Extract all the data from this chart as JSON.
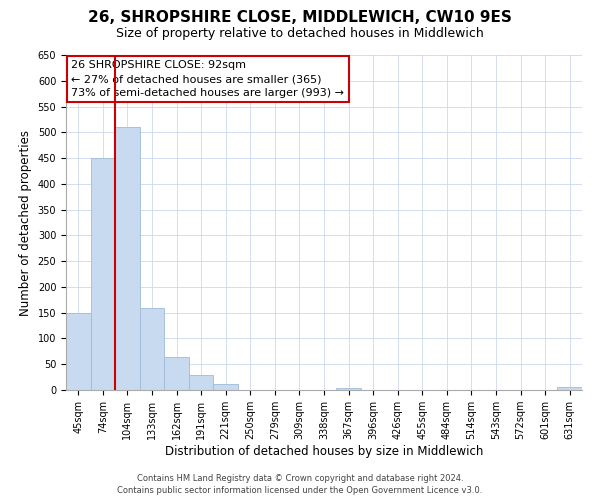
{
  "title": "26, SHROPSHIRE CLOSE, MIDDLEWICH, CW10 9ES",
  "subtitle": "Size of property relative to detached houses in Middlewich",
  "xlabel": "Distribution of detached houses by size in Middlewich",
  "ylabel": "Number of detached properties",
  "bar_labels": [
    "45sqm",
    "74sqm",
    "104sqm",
    "133sqm",
    "162sqm",
    "191sqm",
    "221sqm",
    "250sqm",
    "279sqm",
    "309sqm",
    "338sqm",
    "367sqm",
    "396sqm",
    "426sqm",
    "455sqm",
    "484sqm",
    "514sqm",
    "543sqm",
    "572sqm",
    "601sqm",
    "631sqm"
  ],
  "bar_values": [
    150,
    450,
    510,
    160,
    65,
    30,
    11,
    0,
    0,
    0,
    0,
    3,
    0,
    0,
    0,
    0,
    0,
    0,
    0,
    0,
    5
  ],
  "bar_color": "#c8daf0",
  "bar_edge_color": "#a0bcd8",
  "vline_x": 1.5,
  "vline_color": "#cc0000",
  "ylim": [
    0,
    650
  ],
  "yticks": [
    0,
    50,
    100,
    150,
    200,
    250,
    300,
    350,
    400,
    450,
    500,
    550,
    600,
    650
  ],
  "annotation_title": "26 SHROPSHIRE CLOSE: 92sqm",
  "annotation_line1": "← 27% of detached houses are smaller (365)",
  "annotation_line2": "73% of semi-detached houses are larger (993) →",
  "annotation_box_color": "#ffffff",
  "annotation_box_edge": "#cc0000",
  "footer_line1": "Contains HM Land Registry data © Crown copyright and database right 2024.",
  "footer_line2": "Contains public sector information licensed under the Open Government Licence v3.0.",
  "background_color": "#ffffff",
  "grid_color": "#ccd8ec",
  "title_fontsize": 11,
  "subtitle_fontsize": 9,
  "axis_label_fontsize": 8.5,
  "tick_fontsize": 7,
  "footer_fontsize": 6,
  "annotation_fontsize": 8
}
